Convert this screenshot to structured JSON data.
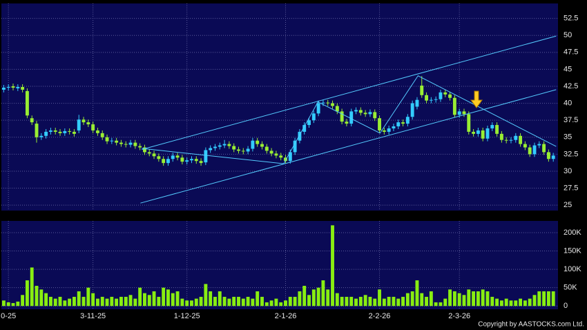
{
  "chart_data": {
    "type": "candlestick",
    "xlim": [
      -0.5,
      118
    ],
    "xticks": [
      {
        "value": 1,
        "label": "0-25"
      },
      {
        "value": 19,
        "label": "3-11-25"
      },
      {
        "value": 39,
        "label": "1-12-25"
      },
      {
        "value": 60,
        "label": "2-1-26"
      },
      {
        "value": 80,
        "label": "2-2-26"
      },
      {
        "value": 97,
        "label": "2-3-26"
      }
    ],
    "ylim": [
      24.2,
      54.7
    ],
    "yticks": [
      25,
      27.5,
      30,
      32.5,
      35,
      37.5,
      40,
      42.5,
      45,
      47.5,
      50,
      52.5
    ],
    "grid": true,
    "up_color": "#33ccff",
    "down_color": "#99ee33",
    "open": [
      42.0,
      42.3,
      42.5,
      42.2,
      42.4,
      41.8,
      37.8,
      37.0,
      35.0,
      35.2,
      35.8,
      36.0,
      35.8,
      35.6,
      35.9,
      35.8,
      36.0,
      37.6,
      37.2,
      36.9,
      36.0,
      35.6,
      35.0,
      34.4,
      34.5,
      34.2,
      34.0,
      33.9,
      34.2,
      33.7,
      33.5,
      32.8,
      32.6,
      32.2,
      31.8,
      31.2,
      31.8,
      32.3,
      32.0,
      31.4,
      31.6,
      31.8,
      31.5,
      31.3,
      33.1,
      33.4,
      33.6,
      33.8,
      34.0,
      33.7,
      33.2,
      33.0,
      32.9,
      33.3,
      34.5,
      34.0,
      33.6,
      33.0,
      32.6,
      32.3,
      32.0,
      31.5,
      32.8,
      34.5,
      35.8,
      36.8,
      37.5,
      38.5,
      40.0,
      40.1,
      40.0,
      39.6,
      38.8,
      37.3,
      37.0,
      38.8,
      39.0,
      38.6,
      38.4,
      38.7,
      37.8,
      36.0,
      35.8,
      36.3,
      36.6,
      37.2,
      37.0,
      38.0,
      39.5,
      42.6,
      41.2,
      40.4,
      40.5,
      40.6,
      41.6,
      41.3,
      40.8,
      38.3,
      38.8,
      38.4,
      35.8,
      35.5,
      36.0,
      34.8,
      36.3,
      36.8,
      35.5,
      34.6,
      34.5,
      34.6,
      35.2,
      34.0,
      33.5,
      32.5,
      33.8,
      34.0,
      32.8,
      31.8
    ],
    "high": [
      42.7,
      42.8,
      42.9,
      42.8,
      42.8,
      42.2,
      38.2,
      37.4,
      35.6,
      36.2,
      36.4,
      36.4,
      36.2,
      36.3,
      36.3,
      36.2,
      38.3,
      38.0,
      37.6,
      37.3,
      36.4,
      36.0,
      35.4,
      34.9,
      34.9,
      34.6,
      34.4,
      34.6,
      34.6,
      34.1,
      33.9,
      33.2,
      33.0,
      32.6,
      32.2,
      32.2,
      32.7,
      32.7,
      32.4,
      32.0,
      32.2,
      32.2,
      31.9,
      33.5,
      33.8,
      34.0,
      34.2,
      34.6,
      34.4,
      34.1,
      33.6,
      33.4,
      33.7,
      34.9,
      34.9,
      34.4,
      34.0,
      33.4,
      33.0,
      32.7,
      32.4,
      33.2,
      34.9,
      36.2,
      37.2,
      37.9,
      38.9,
      40.4,
      40.5,
      40.5,
      40.4,
      40.0,
      39.2,
      37.7,
      39.2,
      39.4,
      39.4,
      39.0,
      39.1,
      39.1,
      38.2,
      36.4,
      36.7,
      37.0,
      37.6,
      37.6,
      38.4,
      40.4,
      40.9,
      44.0,
      41.6,
      40.9,
      41.0,
      42.0,
      42.0,
      41.7,
      41.2,
      39.2,
      39.2,
      38.8,
      36.2,
      36.4,
      36.4,
      36.7,
      37.2,
      37.2,
      35.9,
      35.0,
      35.0,
      35.6,
      35.6,
      34.4,
      33.9,
      34.2,
      34.4,
      34.4,
      33.2,
      32.7
    ],
    "low": [
      41.6,
      41.9,
      41.9,
      41.8,
      41.6,
      37.8,
      36.8,
      34.2,
      34.6,
      34.8,
      35.4,
      35.4,
      35.2,
      35.2,
      35.4,
      35.1,
      35.6,
      36.8,
      36.5,
      35.6,
      35.2,
      34.6,
      34.0,
      34.0,
      33.8,
      33.6,
      33.5,
      33.5,
      33.3,
      33.1,
      32.4,
      32.2,
      31.8,
      31.4,
      30.8,
      30.8,
      31.4,
      31.6,
      31.0,
      31.0,
      31.2,
      31.1,
      30.8,
      30.9,
      32.7,
      33.0,
      33.2,
      33.4,
      33.3,
      32.8,
      32.6,
      32.5,
      32.5,
      32.9,
      33.6,
      33.2,
      32.6,
      32.2,
      31.9,
      31.6,
      31.1,
      31.1,
      32.4,
      34.1,
      35.4,
      36.4,
      37.1,
      38.1,
      39.6,
      39.6,
      39.2,
      38.4,
      36.9,
      36.6,
      36.6,
      38.4,
      38.2,
      38.0,
      38.0,
      37.4,
      35.6,
      35.4,
      35.4,
      35.9,
      36.2,
      36.6,
      36.6,
      37.6,
      39.1,
      40.8,
      40.0,
      40.0,
      40.1,
      40.2,
      40.9,
      40.4,
      37.9,
      37.9,
      38.0,
      35.4,
      35.1,
      35.1,
      34.4,
      34.4,
      35.9,
      35.1,
      34.2,
      34.1,
      34.1,
      34.2,
      33.6,
      33.1,
      32.1,
      32.1,
      33.4,
      32.4,
      31.4,
      31.4
    ],
    "close": [
      42.3,
      42.4,
      42.3,
      42.4,
      42.0,
      38.2,
      37.2,
      35.0,
      35.2,
      35.8,
      36.0,
      35.8,
      35.6,
      35.9,
      35.8,
      35.5,
      37.6,
      37.2,
      36.9,
      36.0,
      35.6,
      35.0,
      34.4,
      34.5,
      34.2,
      34.0,
      33.9,
      34.2,
      33.7,
      33.5,
      32.8,
      32.6,
      32.2,
      31.8,
      31.2,
      31.8,
      32.3,
      32.0,
      31.4,
      31.6,
      31.8,
      31.5,
      31.2,
      33.1,
      33.4,
      33.6,
      33.8,
      34.0,
      33.7,
      33.2,
      33.0,
      32.9,
      33.3,
      34.5,
      34.0,
      33.6,
      33.0,
      32.6,
      32.3,
      32.0,
      31.5,
      32.8,
      34.5,
      35.8,
      36.8,
      37.5,
      38.5,
      40.0,
      40.1,
      40.0,
      39.6,
      38.8,
      37.3,
      37.0,
      38.8,
      39.0,
      38.6,
      38.4,
      38.7,
      37.8,
      36.0,
      35.8,
      36.3,
      36.6,
      37.2,
      37.0,
      38.0,
      40.0,
      40.5,
      41.2,
      40.4,
      40.5,
      40.6,
      41.6,
      41.3,
      40.8,
      38.3,
      38.8,
      38.4,
      35.8,
      35.5,
      36.0,
      34.8,
      36.3,
      36.8,
      35.5,
      34.6,
      34.5,
      34.6,
      35.2,
      34.0,
      33.5,
      32.5,
      33.8,
      34.0,
      32.8,
      31.8,
      32.3
    ],
    "trend_lines": [
      {
        "color": "#55ccff",
        "points": [
          [
            29.4,
            33.2
          ],
          [
            117.6,
            49.9
          ]
        ]
      },
      {
        "color": "#55ccff",
        "points": [
          [
            29.1,
            25.3
          ],
          [
            117.6,
            42.0
          ]
        ]
      },
      {
        "color": "#55ccff",
        "points": [
          [
            29.4,
            33.35
          ],
          [
            59.6,
            31.1
          ],
          [
            66.9,
            40.2
          ],
          [
            80.1,
            35.6
          ],
          [
            88.2,
            44.05
          ],
          [
            117.6,
            33.65
          ]
        ]
      }
    ],
    "volume": {
      "color": "#88ee11",
      "ylim": [
        -9000,
        232000
      ],
      "yticks": [
        0,
        {
          "value": 50000,
          "label": "50K"
        },
        {
          "value": 100000,
          "label": "100K"
        },
        {
          "value": 150000,
          "label": "150K"
        },
        {
          "value": 200000,
          "label": "200K"
        }
      ],
      "values": [
        15000,
        10000,
        8000,
        12000,
        30000,
        70000,
        105000,
        55000,
        45000,
        35000,
        25000,
        20000,
        25000,
        15000,
        20000,
        25000,
        40000,
        25000,
        50000,
        35000,
        20000,
        25000,
        20000,
        25000,
        20000,
        25000,
        25000,
        30000,
        20000,
        50000,
        35000,
        30000,
        40000,
        25000,
        50000,
        45000,
        35000,
        40000,
        20000,
        15000,
        15000,
        20000,
        25000,
        60000,
        40000,
        25000,
        40000,
        25000,
        20000,
        25000,
        25000,
        20000,
        25000,
        20000,
        40000,
        25000,
        10000,
        15000,
        20000,
        10000,
        15000,
        25000,
        25000,
        40000,
        55000,
        30000,
        45000,
        50000,
        70000,
        45000,
        220000,
        35000,
        25000,
        25000,
        25000,
        20000,
        25000,
        30000,
        25000,
        20000,
        45000,
        20000,
        25000,
        25000,
        20000,
        25000,
        35000,
        40000,
        70000,
        35000,
        25000,
        40000,
        10000,
        10000,
        20000,
        45000,
        40000,
        35000,
        30000,
        45000,
        40000,
        40000,
        45000,
        40000,
        25000,
        20000,
        15000,
        20000,
        15000,
        15000,
        20000,
        15000,
        20000,
        30000,
        40000,
        40000,
        40000,
        40000
      ]
    },
    "copyright": "Copyright by AASTOCKS.com Ltd."
  }
}
